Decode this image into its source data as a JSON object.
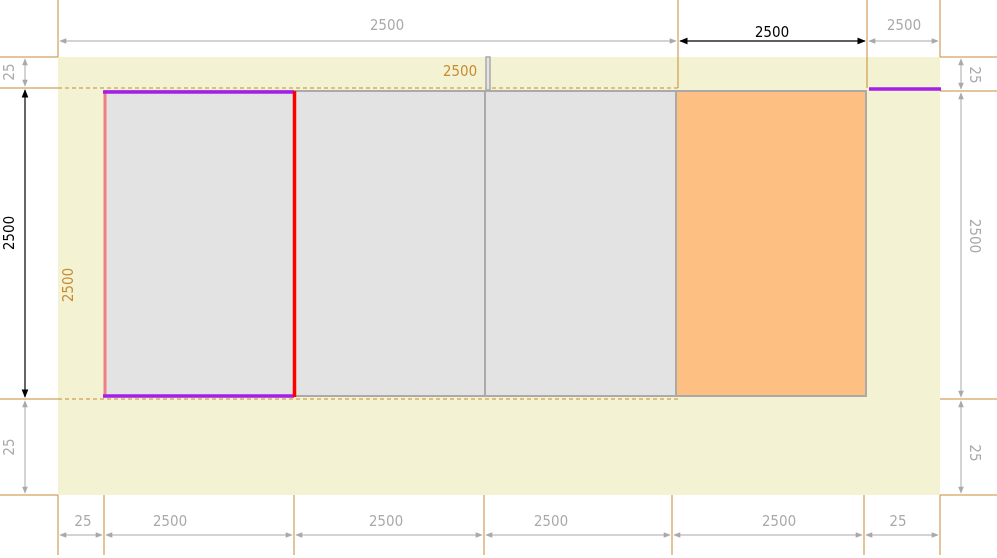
{
  "colors": {
    "background": "#ffffff",
    "sheet_fill": "#f3f2d2",
    "cell_fill": "#e3e3e3",
    "cell_border": "#aaaaaa",
    "highlight_fill": "#fec082",
    "guide": "#c98a34",
    "dim_gray": "#a9a9a9",
    "dim_black": "#000000",
    "edge_red": "#ff0000",
    "edge_purple": "#a61fe8"
  },
  "dimensions": {
    "top_overall": "2500",
    "top_selected": "2500",
    "top_right_margin": "2500",
    "inner_top_label": "2500",
    "left_margin_top": "25",
    "left_height": "2500",
    "left_margin_bottom": "25",
    "inner_left_label": "2500",
    "right_margin_top": "25",
    "right_height": "2500",
    "right_margin_bottom": "25",
    "bottom": [
      "25",
      "2500",
      "2500",
      "2500",
      "2500",
      "25"
    ]
  }
}
